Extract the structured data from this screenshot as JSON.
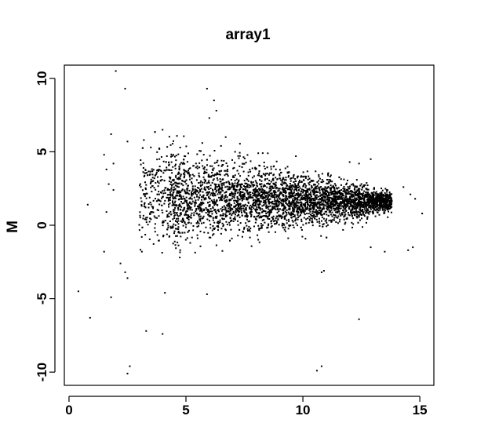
{
  "chart_data": {
    "type": "scatter",
    "title": "array1",
    "xlabel": "",
    "ylabel": "M",
    "xlim": [
      -0.2,
      15.6
    ],
    "ylim": [
      -10.9,
      10.9
    ],
    "x_ticks": [
      0,
      5,
      10,
      15
    ],
    "y_ticks": [
      10,
      5,
      0,
      -5,
      -10
    ],
    "x_tick_labels": [
      "0",
      "5",
      "10",
      "15"
    ],
    "y_tick_labels": [
      "10",
      "5",
      "0",
      "-5",
      "-10"
    ],
    "grid": false,
    "legend": "none",
    "point_color": "#000000",
    "series": [
      {
        "name": "",
        "points": [
          [
            2.0,
            10.5
          ],
          [
            2.4,
            9.3
          ],
          [
            5.9,
            9.3
          ],
          [
            6.2,
            8.5
          ],
          [
            6.3,
            7.8
          ],
          [
            6.0,
            7.3
          ],
          [
            4.0,
            6.5
          ],
          [
            1.8,
            6.2
          ],
          [
            6.7,
            6.0
          ],
          [
            3.2,
            5.8
          ],
          [
            2.5,
            5.7
          ],
          [
            3.5,
            5.3
          ],
          [
            5.7,
            5.6
          ],
          [
            6.5,
            5.4
          ],
          [
            1.5,
            4.8
          ],
          [
            1.9,
            4.2
          ],
          [
            12.0,
            4.3
          ],
          [
            12.4,
            4.2
          ],
          [
            12.9,
            4.5
          ],
          [
            9.7,
            4.7
          ],
          [
            8.5,
            4.9
          ],
          [
            7.1,
            5.0
          ],
          [
            11.2,
            3.4
          ],
          [
            1.6,
            3.8
          ],
          [
            1.7,
            2.8
          ],
          [
            1.9,
            2.4
          ],
          [
            14.3,
            2.6
          ],
          [
            14.6,
            2.1
          ],
          [
            14.8,
            1.8
          ],
          [
            15.1,
            0.8
          ],
          [
            0.8,
            1.4
          ],
          [
            1.6,
            0.9
          ],
          [
            1.5,
            -1.8
          ],
          [
            2.2,
            -2.6
          ],
          [
            2.4,
            -3.2
          ],
          [
            2.5,
            -3.6
          ],
          [
            1.8,
            -4.9
          ],
          [
            0.4,
            -4.5
          ],
          [
            0.9,
            -6.3
          ],
          [
            3.3,
            -7.2
          ],
          [
            4.0,
            -7.4
          ],
          [
            2.6,
            -9.6
          ],
          [
            2.5,
            -10.1
          ],
          [
            10.8,
            -9.6
          ],
          [
            10.6,
            -9.9
          ],
          [
            12.4,
            -6.4
          ],
          [
            10.8,
            -3.2
          ],
          [
            10.9,
            -3.1
          ],
          [
            5.9,
            -4.7
          ],
          [
            4.1,
            -4.6
          ],
          [
            14.5,
            -1.7
          ],
          [
            14.7,
            -1.5
          ],
          [
            13.5,
            -1.8
          ],
          [
            12.9,
            -1.5
          ]
        ]
      }
    ]
  }
}
